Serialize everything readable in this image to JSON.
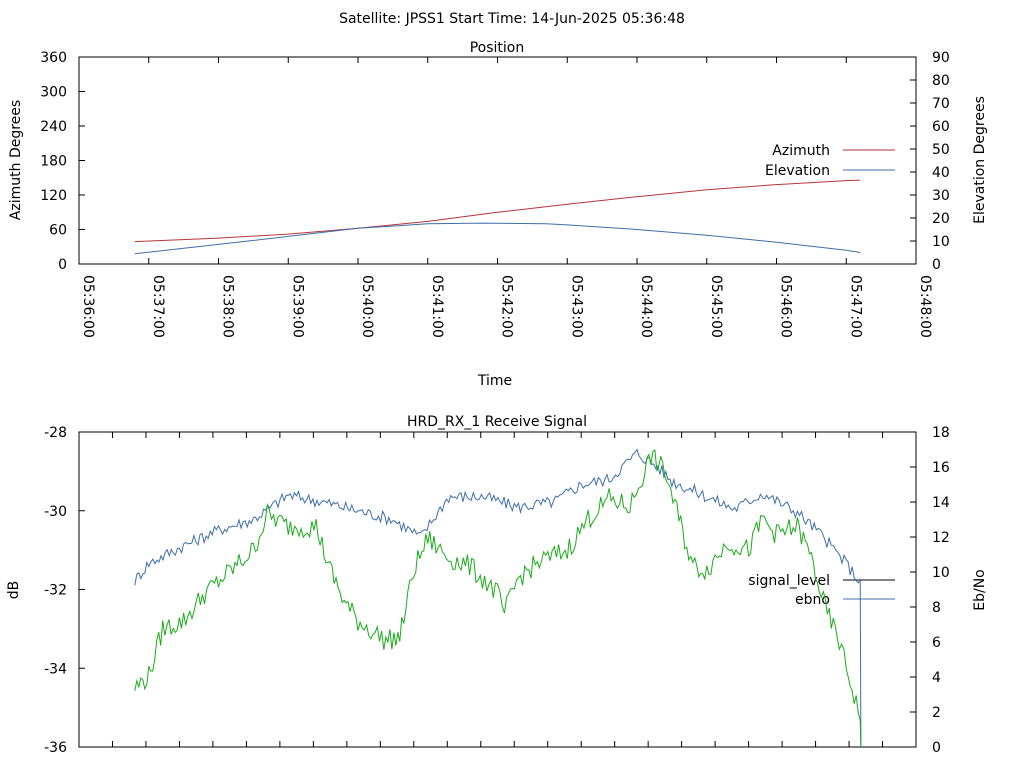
{
  "header": {
    "title": "Satellite: JPSS1    Start Time: 14-Jun-2025 05:36:48"
  },
  "chart_data": [
    {
      "type": "line",
      "title": "Position",
      "xlabel": "Time",
      "ylabel_left": "Azimuth Degrees",
      "ylabel_right": "Elevation Degrees",
      "x_tick_labels": [
        "05:36:00",
        "05:37:00",
        "05:38:00",
        "05:39:00",
        "05:40:00",
        "05:41:00",
        "05:42:00",
        "05:43:00",
        "05:44:00",
        "05:45:00",
        "05:46:00",
        "05:47:00",
        "05:48:00"
      ],
      "ylim_left": [
        0,
        360
      ],
      "yticks_left": [
        "0",
        "60",
        "120",
        "180",
        "240",
        "300",
        "360"
      ],
      "ylim_right": [
        0,
        90
      ],
      "yticks_right": [
        "0",
        "10",
        "20",
        "30",
        "40",
        "50",
        "60",
        "70",
        "80",
        "90"
      ],
      "xlim_minutes": [
        0,
        12
      ],
      "legend_position": "right",
      "grid": false,
      "series": [
        {
          "name": "Azimuth",
          "axis": "left",
          "color": "#b5353b",
          "points": [
            [
              0.8,
              39
            ],
            [
              2,
              45
            ],
            [
              3,
              52
            ],
            [
              4,
              62
            ],
            [
              5,
              74
            ],
            [
              6,
              90
            ],
            [
              7,
              104
            ],
            [
              8,
              117
            ],
            [
              9,
              129
            ],
            [
              10,
              138
            ],
            [
              11,
              145
            ],
            [
              11.2,
              146
            ]
          ]
        },
        {
          "name": "Elevation",
          "axis": "right",
          "color": "#3f6fa8",
          "points": [
            [
              0.8,
              4.5
            ],
            [
              2,
              8.5
            ],
            [
              3,
              12
            ],
            [
              4,
              15.5
            ],
            [
              5,
              17.5
            ],
            [
              5.8,
              17.8
            ],
            [
              6.7,
              17.5
            ],
            [
              7,
              17
            ],
            [
              8,
              15
            ],
            [
              9,
              12.5
            ],
            [
              10,
              9.5
            ],
            [
              11,
              6
            ],
            [
              11.2,
              5
            ]
          ]
        }
      ]
    },
    {
      "type": "line",
      "title": "HRD_RX_1 Receive Signal",
      "ylabel_left": "dB",
      "ylabel_right": "Eb/No",
      "ylim_left": [
        -36,
        -28
      ],
      "yticks_left": [
        "-36",
        "-34",
        "-32",
        "-30",
        "-28"
      ],
      "ylim_right": [
        0,
        18
      ],
      "yticks_right": [
        "0",
        "2",
        "4",
        "6",
        "8",
        "10",
        "12",
        "14",
        "16",
        "18"
      ],
      "xlim_minutes": [
        0,
        12
      ],
      "x_minor_ticks": 25,
      "legend_position": "right",
      "grid": false,
      "series": [
        {
          "name": "signal_level",
          "axis": "left",
          "color": "#000000",
          "points": []
        },
        {
          "name": "ebno",
          "axis": "right",
          "color": "#3f6fa8",
          "points": [
            [
              0.8,
              9.5
            ],
            [
              1,
              10.5
            ],
            [
              1.5,
              11.5
            ],
            [
              2,
              12.4
            ],
            [
              2.5,
              13
            ],
            [
              3,
              14.4
            ],
            [
              3.5,
              14
            ],
            [
              4,
              13.5
            ],
            [
              4.5,
              13
            ],
            [
              4.9,
              12
            ],
            [
              5.3,
              14.3
            ],
            [
              5.8,
              14.3
            ],
            [
              6.3,
              13.7
            ],
            [
              6.8,
              14
            ],
            [
              7.2,
              15
            ],
            [
              7.6,
              15.3
            ],
            [
              8,
              16.8
            ],
            [
              8.3,
              16
            ],
            [
              8.5,
              15.2
            ],
            [
              9,
              14.3
            ],
            [
              9.4,
              13.6
            ],
            [
              9.8,
              14.5
            ],
            [
              10.3,
              13.4
            ],
            [
              10.6,
              12.3
            ],
            [
              11,
              10.5
            ],
            [
              11.2,
              9.4
            ],
            [
              11.21,
              0
            ]
          ]
        },
        {
          "name": "",
          "axis": "left",
          "color": "#1aab1a",
          "points": [
            [
              0.8,
              -34.5
            ],
            [
              1,
              -34.2
            ],
            [
              1.2,
              -33
            ],
            [
              1.5,
              -32.8
            ],
            [
              1.8,
              -32.1
            ],
            [
              2,
              -31.8
            ],
            [
              2.5,
              -31
            ],
            [
              2.7,
              -30.1
            ],
            [
              3,
              -30.4
            ],
            [
              3.4,
              -30.4
            ],
            [
              3.6,
              -31.5
            ],
            [
              3.8,
              -32.3
            ],
            [
              4,
              -32.8
            ],
            [
              4.4,
              -33.3
            ],
            [
              4.6,
              -33.2
            ],
            [
              4.8,
              -31.5
            ],
            [
              5,
              -30.7
            ],
            [
              5.3,
              -31.2
            ],
            [
              5.6,
              -31.4
            ],
            [
              6,
              -32.1
            ],
            [
              6.1,
              -32.6
            ],
            [
              6.3,
              -31.7
            ],
            [
              6.6,
              -31.3
            ],
            [
              7,
              -31
            ],
            [
              7.3,
              -30.2
            ],
            [
              7.6,
              -29.7
            ],
            [
              7.9,
              -29.9
            ],
            [
              8.2,
              -28.6
            ],
            [
              8.4,
              -29
            ],
            [
              8.6,
              -30.2
            ],
            [
              8.8,
              -31.4
            ],
            [
              9,
              -31.5
            ],
            [
              9.3,
              -30.8
            ],
            [
              9.6,
              -31
            ],
            [
              9.8,
              -30.2
            ],
            [
              10,
              -30.6
            ],
            [
              10.3,
              -30.4
            ],
            [
              10.5,
              -31.2
            ],
            [
              10.7,
              -32.5
            ],
            [
              10.9,
              -33.3
            ],
            [
              11,
              -34
            ],
            [
              11.2,
              -35.2
            ],
            [
              11.21,
              -36
            ]
          ]
        }
      ]
    }
  ]
}
